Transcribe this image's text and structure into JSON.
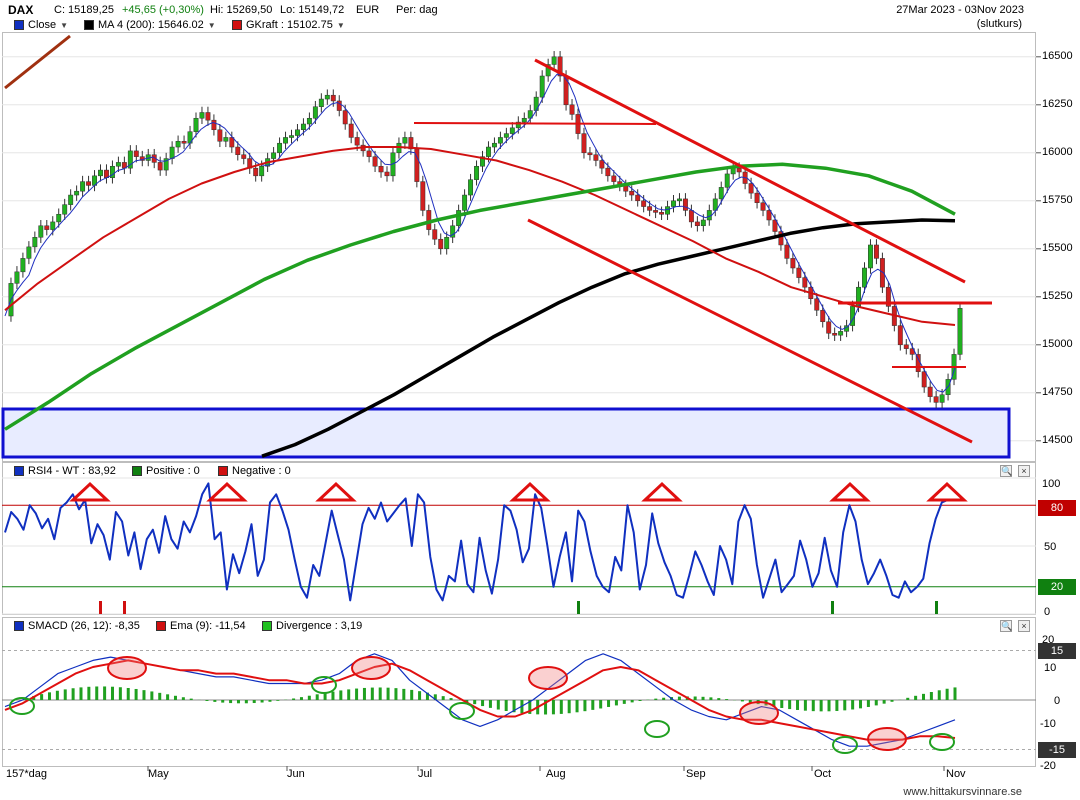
{
  "header": {
    "symbol": "DAX",
    "close": "C: 15189,25",
    "change": "+45,65 (+0,30%)",
    "high": "Hi: 15269,50",
    "low": "Lo: 15149,72",
    "currency": "EUR",
    "period": "Per: dag",
    "date_range": "27Mar 2023 - 03Nov 2023",
    "price_mode": "(slutkurs)"
  },
  "price_legend": [
    {
      "label": "Close",
      "color": "#1030c0"
    },
    {
      "label": "MA 4 (200): 15646.02",
      "color": "#000000"
    },
    {
      "label": "GKraft : 15102.75",
      "color": "#d01010"
    }
  ],
  "rsi_legend": [
    {
      "label": "RSI4 - WT : 83,92",
      "color": "#1030c0"
    },
    {
      "label": "Positive : 0",
      "color": "#108010"
    },
    {
      "label": "Negative : 0",
      "color": "#d01010"
    }
  ],
  "macd_legend": [
    {
      "label": "SMACD (26, 12): -8,35",
      "color": "#1030c0"
    },
    {
      "label": "Ema (9): -11,54",
      "color": "#d01010"
    },
    {
      "label": "Divergence : 3,19",
      "color": "#20c020"
    }
  ],
  "price_axis": [
    "16500",
    "16250",
    "16000",
    "15750",
    "15500",
    "15250",
    "15000",
    "14750",
    "14500"
  ],
  "rsi_axis": [
    "100",
    "80",
    "50",
    "20",
    "0"
  ],
  "rsi_levels": {
    "upper": "80",
    "lower": "20"
  },
  "macd_axis": [
    "20",
    "15",
    "10",
    "0",
    "-10",
    "-15",
    "-20"
  ],
  "macd_levels": {
    "upper": "15",
    "zero": "0",
    "lower": "-15"
  },
  "time_axis": {
    "bar_count": "157*dag",
    "months": [
      "May",
      "Jun",
      "Jul",
      "Aug",
      "Sep",
      "Oct",
      "Nov"
    ]
  },
  "footer": "www.hittakursvinnare.se",
  "chart_data": {
    "type": "line",
    "title": "DAX",
    "x_range": [
      "27Mar 2023",
      "03Nov 2023"
    ],
    "ylim": [
      14400,
      16650
    ],
    "price_series": [
      {
        "name": "Close",
        "values": [
          15150,
          15320,
          15380,
          15450,
          15510,
          15560,
          15620,
          15600,
          15640,
          15680,
          15730,
          15780,
          15800,
          15850,
          15830,
          15880,
          15910,
          15870,
          15930,
          15950,
          15920,
          16010,
          15980,
          15960,
          15990,
          15950,
          15910,
          15970,
          16030,
          16060,
          16050,
          16110,
          16180,
          16210,
          16170,
          16120,
          16060,
          16080,
          16030,
          15990,
          15970,
          15920,
          15880,
          15930,
          15970,
          16000,
          16050,
          16080,
          16090,
          16120,
          16150,
          16180,
          16240,
          16280,
          16300,
          16270,
          16220,
          16150,
          16080,
          16040,
          16010,
          15980,
          15930,
          15900,
          15880,
          16000,
          16050,
          16080,
          16020,
          15850,
          15700,
          15600,
          15550,
          15500,
          15560,
          15620,
          15700,
          15780,
          15860,
          15930,
          15980,
          16030,
          16050,
          16080,
          16100,
          16130,
          16160,
          16180,
          16220,
          16290,
          16400,
          16460,
          16500,
          16400,
          16250,
          16200,
          16100,
          16000,
          15990,
          15960,
          15920,
          15880,
          15850,
          15830,
          15800,
          15780,
          15750,
          15720,
          15700,
          15690,
          15680,
          15720,
          15750,
          15760,
          15700,
          15640,
          15620,
          15650,
          15700,
          15760,
          15820,
          15890,
          15920,
          15900,
          15840,
          15790,
          15740,
          15700,
          15650,
          15590,
          15520,
          15450,
          15400,
          15350,
          15300,
          15240,
          15180,
          15120,
          15060,
          15050,
          15070,
          15100,
          15200,
          15300,
          15400,
          15520,
          15450,
          15300,
          15200,
          15100,
          15000,
          14980,
          14950,
          14860,
          14780,
          14730,
          14700,
          14740,
          14820,
          14950,
          15190
        ]
      },
      {
        "name": "MA 4 (200): 15646.02",
        "values": [
          14420,
          14480,
          14560,
          14650,
          14740,
          14840,
          14940,
          15040,
          15130,
          15220,
          15300,
          15370,
          15420,
          15460,
          15500,
          15540,
          15580,
          15610,
          15630,
          15640,
          15650,
          15646
        ]
      },
      {
        "name": "GKraft : 15102.75",
        "values": [
          15180,
          15320,
          15440,
          15560,
          15660,
          15760,
          15840,
          15900,
          15950,
          15980,
          16010,
          16030,
          16030,
          16020,
          15990,
          15960,
          15910,
          15850,
          15780,
          15700,
          15620,
          15540,
          15450,
          15380,
          15300,
          15250,
          15200,
          15160,
          15120,
          15103
        ]
      }
    ],
    "rsi": {
      "name": "RSI4 - WT",
      "ylim": [
        0,
        100
      ],
      "levels": [
        20,
        80
      ],
      "last": 83.92,
      "values": [
        60,
        75,
        70,
        62,
        80,
        74,
        63,
        70,
        55,
        78,
        82,
        88,
        77,
        84,
        52,
        66,
        58,
        40,
        75,
        68,
        43,
        60,
        33,
        55,
        62,
        45,
        72,
        55,
        48,
        68,
        60,
        72,
        88,
        96,
        55,
        60,
        18,
        44,
        30,
        46,
        66,
        28,
        40,
        82,
        88,
        76,
        62,
        40,
        20,
        12,
        36,
        28,
        52,
        76,
        58,
        40,
        10,
        38,
        66,
        78,
        70,
        82,
        68,
        74,
        80,
        85,
        50,
        88,
        82,
        42,
        18,
        10,
        28,
        24,
        54,
        22,
        16,
        56,
        32,
        15,
        40,
        80,
        76,
        62,
        38,
        48,
        88,
        78,
        50,
        20,
        42,
        60,
        24,
        76,
        68,
        46,
        28,
        20,
        16,
        42,
        32,
        80,
        60,
        18,
        36,
        74,
        52,
        38,
        28,
        14,
        12,
        28,
        46,
        36,
        24,
        14,
        50,
        40,
        22,
        68,
        80,
        70,
        36,
        12,
        26,
        40,
        16,
        22,
        28,
        54,
        40,
        20,
        30,
        56,
        32,
        20,
        60,
        80,
        68,
        40,
        22,
        30,
        40,
        28,
        14,
        12,
        24,
        16,
        20,
        26,
        52,
        70,
        82,
        84
      ]
    },
    "macd": {
      "ylim": [
        -20,
        20
      ],
      "levels": [
        -15,
        0,
        15
      ],
      "smacd": {
        "name": "SMACD (26, 12)",
        "last": -8.35
      },
      "ema": {
        "name": "Ema (9)",
        "last": -11.54
      },
      "divergence": {
        "name": "Divergence",
        "last": 3.19
      }
    }
  },
  "price_series_colors": {
    "close": "#1030c0",
    "ma200": "#000000",
    "gkraft": "#d01010",
    "green_ma": "#20a020",
    "support_box": "#e8ecff"
  }
}
